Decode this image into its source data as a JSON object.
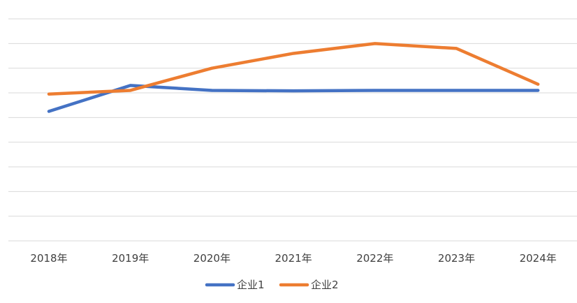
{
  "chart_data": {
    "type": "line",
    "title": "",
    "xlabel": "",
    "ylabel": "",
    "categories": [
      "2018年",
      "2019年",
      "2020年",
      "2021年",
      "2022年",
      "2023年",
      "2024年"
    ],
    "series": [
      {
        "name": "企业1",
        "color": "#4472C4",
        "values": [
          5.25,
          6.3,
          6.1,
          6.08,
          6.1,
          6.1,
          6.1
        ]
      },
      {
        "name": "企业2",
        "color": "#ED7D31",
        "values": [
          5.95,
          6.1,
          7.0,
          7.6,
          8.0,
          7.8,
          6.35
        ]
      }
    ],
    "ylim": [
      0,
      9
    ],
    "y_gridlines": [
      0,
      1,
      2,
      3,
      4,
      5,
      6,
      7,
      8,
      9
    ],
    "grid": true,
    "show_y_tick_labels": false,
    "legend": "bottom"
  }
}
